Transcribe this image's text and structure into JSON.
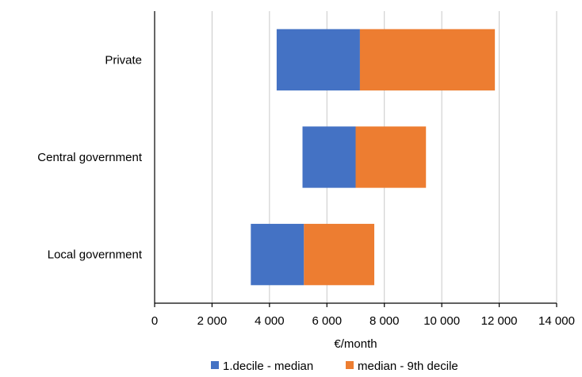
{
  "chart_data": {
    "type": "bar",
    "orientation": "horizontal",
    "stacked": true,
    "categories": [
      "Private",
      "Central government",
      "Local government"
    ],
    "base": [
      4250,
      5150,
      3350
    ],
    "series": [
      {
        "name": "1.decile - median",
        "color": "#4472c4",
        "values": [
          2900,
          1850,
          1850
        ]
      },
      {
        "name": "median - 9th decile",
        "color": "#ed7d31",
        "values": [
          4700,
          2450,
          2450
        ]
      }
    ],
    "xlim": [
      0,
      14000
    ],
    "xticks": [
      0,
      2000,
      4000,
      6000,
      8000,
      10000,
      12000,
      14000
    ],
    "xtick_labels": [
      "0",
      "2 000",
      "4 000",
      "6 000",
      "8 000",
      "10 000",
      "12 000",
      "14 000"
    ],
    "xlabel": "€/month",
    "ylabel": "",
    "grid": "vertical",
    "legend": "bottom"
  }
}
